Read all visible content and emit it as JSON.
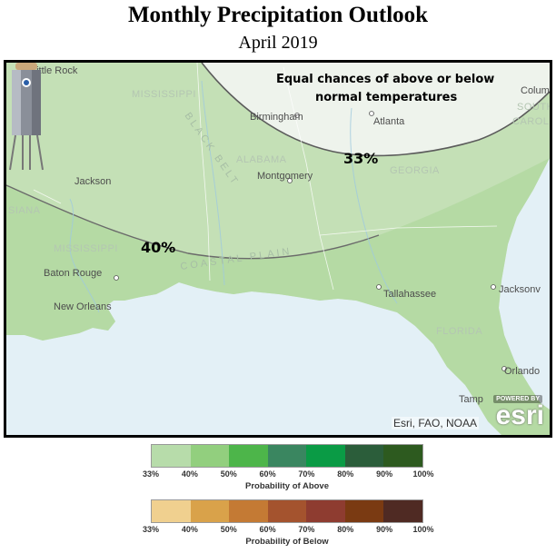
{
  "header": {
    "title": "Monthly Precipitation Outlook",
    "subtitle": "April 2019"
  },
  "map": {
    "note_line1": "Equal chances of above or below",
    "note_line2": "normal temperatures",
    "pct_upper": "33%",
    "pct_lower": "40%",
    "attribution": "Esri, FAO, NOAA",
    "esri_powered": "POWERED BY",
    "esri_word": "esri",
    "cities": {
      "little_rock": "Little Rock",
      "birmingham": "Birmingham",
      "atlanta": "Atlanta",
      "columbia": "Colum",
      "jackson": "Jackson",
      "montgomery": "Montgomery",
      "baton_rouge": "Baton Rouge",
      "new_orleans": "New Orleans",
      "tallahassee": "Tallahassee",
      "jacksonville": "Jacksonv",
      "orlando": "Orlando",
      "tampa": "Tamp"
    },
    "states": {
      "mississippi_top": "MISSISSIPPI",
      "alabama": "ALABAMA",
      "georgia": "GEORGIA",
      "south_carolina_1": "SOUTH",
      "south_carolina_2": "CAROL",
      "louisiana": "SIANA",
      "mississippi_low": "MISSISSIPPI",
      "florida": "FLORIDA"
    },
    "regions": {
      "black_belt": "BLACK BELT",
      "coastal_plain": "COASTAL PLAIN"
    }
  },
  "legend_above": {
    "caption": "Probability of Above",
    "ticks": [
      "33%",
      "40%",
      "50%",
      "60%",
      "70%",
      "80%",
      "90%",
      "100%"
    ],
    "colors": [
      "#b7dcaa",
      "#92cf7e",
      "#4db54a",
      "#3a8660",
      "#0a9b45",
      "#2b5d3a",
      "#2d5a1f"
    ]
  },
  "legend_below": {
    "caption": "Probability of Below",
    "ticks": [
      "33%",
      "40%",
      "50%",
      "60%",
      "70%",
      "80%",
      "90%",
      "100%"
    ],
    "colors": [
      "#f0d08f",
      "#d9a24a",
      "#c47a34",
      "#a4532e",
      "#8e3c30",
      "#7a3a12",
      "#4f2a23"
    ]
  }
}
